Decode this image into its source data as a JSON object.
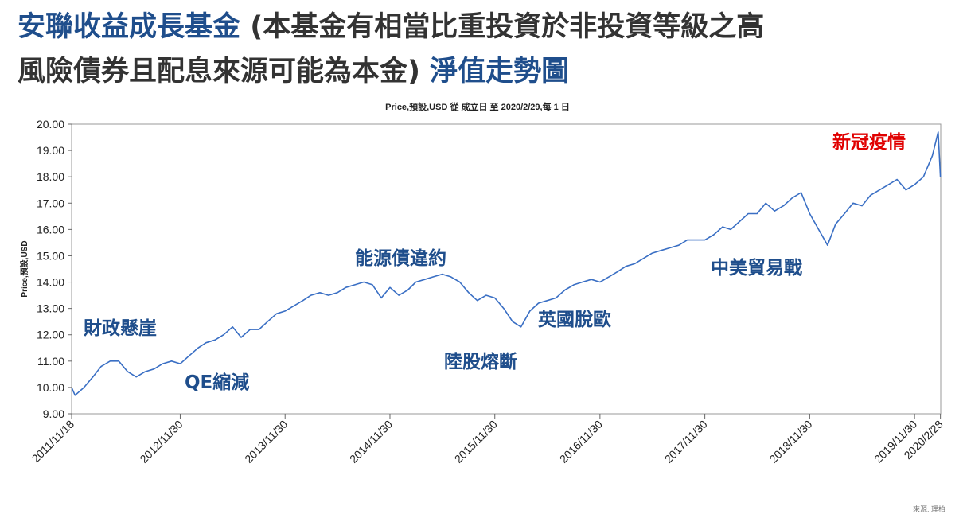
{
  "chart_data": {
    "type": "line",
    "heading": [
      {
        "text": "安聯收益成長基金",
        "color": "#1f4e8c"
      },
      {
        "text": " (本基金有相當比重投資於非投資等級之高",
        "color": "#333333"
      },
      {
        "text": "風險債券且配息來源可能為本金)",
        "color": "#333333"
      },
      {
        "text": " 淨值走勢圖",
        "color": "#1f4e8c"
      }
    ],
    "title": "Price,預設,USD 從 成立日 至 2020/2/29,每 1 日",
    "ylabel": "Price,預設,USD",
    "source": "來源: 理柏",
    "xlim": [
      "2011/11/18",
      "2020/2/29"
    ],
    "xticks": [
      "2011/11/18",
      "2012/11/30",
      "2013/11/30",
      "2014/11/30",
      "2015/11/30",
      "2016/11/30",
      "2017/11/30",
      "2018/11/30",
      "2019/11/30",
      "2020/2/28"
    ],
    "ylim": [
      9,
      20
    ],
    "yticks": [
      {
        "value": 9,
        "label": "9.00"
      },
      {
        "value": 10,
        "label": "10.00"
      },
      {
        "value": 11,
        "label": "11.00"
      },
      {
        "value": 12,
        "label": "12.00"
      },
      {
        "value": 13,
        "label": "13.00"
      },
      {
        "value": 14,
        "label": "14.00"
      },
      {
        "value": 15,
        "label": "15.00"
      },
      {
        "value": 16,
        "label": "16.00"
      },
      {
        "value": 17,
        "label": "17.00"
      },
      {
        "value": 18,
        "label": "18.00"
      },
      {
        "value": 19,
        "label": "19.00"
      },
      {
        "value": 20,
        "label": "20.00"
      }
    ],
    "annotations": [
      {
        "text": "財政懸崖",
        "color": "#1f4e8c"
      },
      {
        "text": "QE縮減",
        "color": "#1f4e8c"
      },
      {
        "text": "能源債違約",
        "color": "#1f4e8c"
      },
      {
        "text": "陸股熔斷",
        "color": "#1f4e8c"
      },
      {
        "text": "英國脫歐",
        "color": "#1f4e8c"
      },
      {
        "text": "中美貿易戰",
        "color": "#1f4e8c"
      },
      {
        "text": "新冠疫情",
        "color": "#e00000"
      }
    ],
    "series": [
      {
        "color": "#3a6fc4",
        "x": [
          "2011/11/18",
          "2011/11/30",
          "2011/12/31",
          "2012/1/31",
          "2012/2/29",
          "2012/3/31",
          "2012/4/30",
          "2012/5/31",
          "2012/6/30",
          "2012/7/31",
          "2012/8/31",
          "2012/9/30",
          "2012/10/31",
          "2012/11/30",
          "2012/12/31",
          "2013/1/31",
          "2013/2/28",
          "2013/3/31",
          "2013/4/30",
          "2013/5/31",
          "2013/6/30",
          "2013/7/31",
          "2013/8/31",
          "2013/9/30",
          "2013/10/31",
          "2013/11/30",
          "2013/12/31",
          "2014/1/31",
          "2014/2/28",
          "2014/3/31",
          "2014/4/30",
          "2014/5/31",
          "2014/6/30",
          "2014/7/31",
          "2014/8/31",
          "2014/9/30",
          "2014/10/31",
          "2014/11/30",
          "2014/12/31",
          "2015/1/31",
          "2015/2/28",
          "2015/3/31",
          "2015/4/30",
          "2015/5/31",
          "2015/6/30",
          "2015/7/31",
          "2015/8/31",
          "2015/9/30",
          "2015/10/31",
          "2015/11/30",
          "2015/12/31",
          "2016/1/31",
          "2016/2/29",
          "2016/3/31",
          "2016/4/30",
          "2016/5/31",
          "2016/6/30",
          "2016/7/31",
          "2016/8/31",
          "2016/9/30",
          "2016/10/31",
          "2016/11/30",
          "2016/12/31",
          "2017/1/31",
          "2017/2/28",
          "2017/3/31",
          "2017/4/30",
          "2017/5/31",
          "2017/6/30",
          "2017/7/31",
          "2017/8/31",
          "2017/9/30",
          "2017/10/31",
          "2017/11/30",
          "2017/12/31",
          "2018/1/31",
          "2018/2/28",
          "2018/3/31",
          "2018/4/30",
          "2018/5/31",
          "2018/6/30",
          "2018/7/31",
          "2018/8/31",
          "2018/9/30",
          "2018/10/31",
          "2018/11/30",
          "2018/12/31",
          "2019/1/31",
          "2019/2/28",
          "2019/3/31",
          "2019/4/30",
          "2019/5/31",
          "2019/6/30",
          "2019/7/31",
          "2019/8/31",
          "2019/9/30",
          "2019/10/31",
          "2019/11/30",
          "2019/12/31",
          "2020/1/31",
          "2020/2/20",
          "2020/2/28"
        ],
        "values": [
          10.0,
          9.7,
          10.0,
          10.4,
          10.8,
          11.0,
          11.0,
          10.6,
          10.4,
          10.6,
          10.7,
          10.9,
          11.0,
          10.9,
          11.2,
          11.5,
          11.7,
          11.8,
          12.0,
          12.3,
          11.9,
          12.2,
          12.2,
          12.5,
          12.8,
          12.9,
          13.1,
          13.3,
          13.5,
          13.6,
          13.5,
          13.6,
          13.8,
          13.9,
          14.0,
          13.9,
          13.4,
          13.8,
          13.5,
          13.7,
          14.0,
          14.1,
          14.2,
          14.3,
          14.2,
          14.0,
          13.6,
          13.3,
          13.5,
          13.4,
          13.0,
          12.5,
          12.3,
          12.9,
          13.2,
          13.3,
          13.4,
          13.7,
          13.9,
          14.0,
          14.1,
          14.0,
          14.2,
          14.4,
          14.6,
          14.7,
          14.9,
          15.1,
          15.2,
          15.3,
          15.4,
          15.6,
          15.6,
          15.6,
          15.8,
          16.1,
          16.0,
          16.3,
          16.6,
          16.6,
          17.0,
          16.7,
          16.9,
          17.2,
          17.4,
          16.6,
          16.0,
          15.4,
          16.2,
          16.6,
          17.0,
          16.9,
          17.3,
          17.5,
          17.7,
          17.9,
          17.5,
          17.7,
          18.0,
          18.8,
          19.7,
          18.0
        ]
      }
    ]
  }
}
